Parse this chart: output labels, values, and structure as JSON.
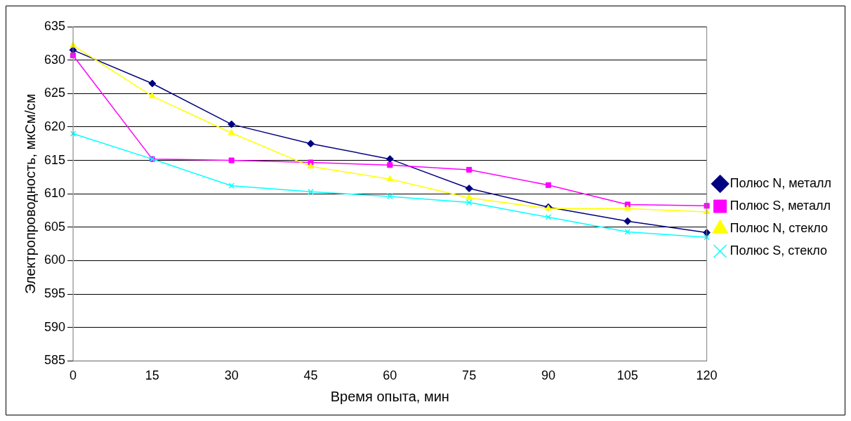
{
  "chart_data": {
    "type": "line",
    "xlabel": "Время опыта, мин",
    "ylabel": "Электропроводность, мкСм/см",
    "categories": [
      "0",
      "15",
      "30",
      "45",
      "60",
      "75",
      "90",
      "105",
      "120"
    ],
    "series": [
      {
        "name": "Полюс N, металл",
        "color": "#000080",
        "marker": "diamond",
        "values": [
          631.5,
          626.5,
          620.4,
          617.5,
          615.2,
          610.8,
          608.0,
          605.9,
          604.2
        ]
      },
      {
        "name": "Полюс S, металл",
        "color": "#ff00ff",
        "marker": "square",
        "values": [
          630.7,
          615.2,
          615.0,
          614.7,
          614.3,
          613.6,
          611.3,
          608.4,
          608.2
        ]
      },
      {
        "name": "Полюс N, стекло",
        "color": "#ffff00",
        "marker": "triangle",
        "values": [
          632.2,
          624.6,
          619.1,
          614.1,
          612.2,
          609.4,
          607.8,
          607.8,
          607.3
        ]
      },
      {
        "name": "Полюс S, стекло",
        "color": "#00ffff",
        "marker": "cross",
        "values": [
          619.0,
          615.2,
          611.2,
          610.3,
          609.6,
          608.7,
          606.5,
          604.3,
          603.5
        ]
      }
    ],
    "ylim": [
      585,
      635
    ],
    "yticks": [
      585,
      590,
      595,
      600,
      605,
      610,
      615,
      620,
      625,
      630,
      635
    ],
    "grid": "y",
    "legend": "right",
    "line_style": "solid"
  }
}
